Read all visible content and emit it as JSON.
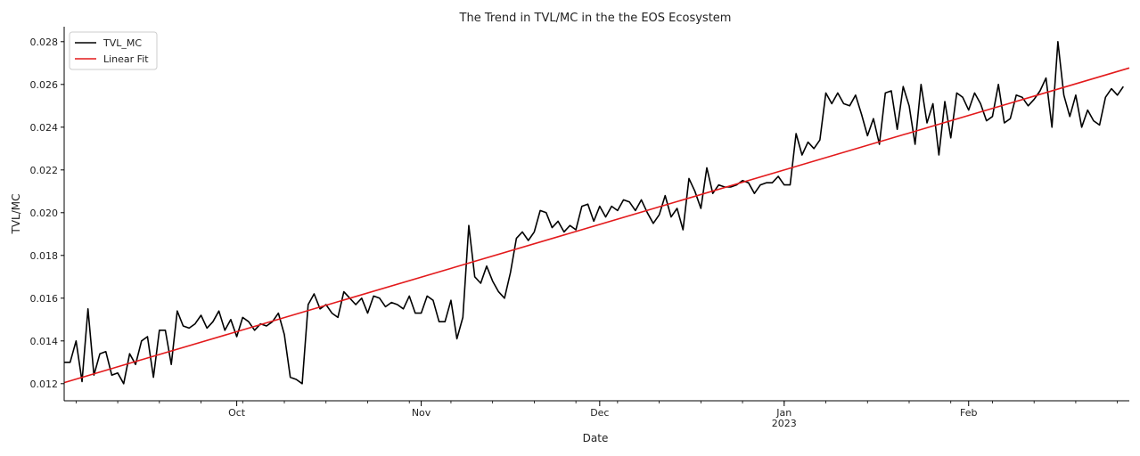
{
  "chart_data": {
    "type": "line",
    "title": "The Trend in TVL/MC in the the EOS Ecosystem",
    "xlabel": "Date",
    "ylabel": "TVL/MC",
    "xlim": [
      "2022-09-02",
      "2023-02-28"
    ],
    "ylim": [
      0.0112,
      0.0287
    ],
    "grid": false,
    "legend_position": "top-left",
    "x_ticks": [
      {
        "date": "2022-10-01",
        "label": "Oct",
        "sublabel": ""
      },
      {
        "date": "2022-11-01",
        "label": "Nov",
        "sublabel": ""
      },
      {
        "date": "2022-12-01",
        "label": "Dec",
        "sublabel": ""
      },
      {
        "date": "2023-01-01",
        "label": "Jan",
        "sublabel": "2023"
      },
      {
        "date": "2023-02-01",
        "label": "Feb",
        "sublabel": ""
      }
    ],
    "y_ticks": [
      {
        "value": 0.012,
        "label": "0.012"
      },
      {
        "value": 0.014,
        "label": "0.014"
      },
      {
        "value": 0.016,
        "label": "0.016"
      },
      {
        "value": 0.018,
        "label": "0.018"
      },
      {
        "value": 0.02,
        "label": "0.020"
      },
      {
        "value": 0.022,
        "label": "0.022"
      },
      {
        "value": 0.024,
        "label": "0.024"
      },
      {
        "value": 0.026,
        "label": "0.026"
      },
      {
        "value": 0.028,
        "label": "0.028"
      }
    ],
    "series": [
      {
        "name": "TVL_MC",
        "color": "#000000",
        "kind": "line",
        "start_date": "2022-09-02",
        "step_days": 1,
        "values": [
          0.013,
          0.013,
          0.014,
          0.0121,
          0.0155,
          0.0124,
          0.0134,
          0.0135,
          0.0124,
          0.0125,
          0.012,
          0.0134,
          0.0129,
          0.014,
          0.0142,
          0.0123,
          0.0145,
          0.0145,
          0.0129,
          0.0154,
          0.0147,
          0.0146,
          0.0148,
          0.0152,
          0.0146,
          0.0149,
          0.0154,
          0.0145,
          0.015,
          0.0142,
          0.0151,
          0.0149,
          0.0145,
          0.0148,
          0.0147,
          0.0149,
          0.0153,
          0.0143,
          0.0123,
          0.0122,
          0.012,
          0.0157,
          0.0162,
          0.0155,
          0.0157,
          0.0153,
          0.0151,
          0.0163,
          0.016,
          0.0157,
          0.016,
          0.0153,
          0.0161,
          0.016,
          0.0156,
          0.0158,
          0.0157,
          0.0155,
          0.0161,
          0.0153,
          0.0153,
          0.0161,
          0.0159,
          0.0149,
          0.0149,
          0.0159,
          0.0141,
          0.0151,
          0.0194,
          0.017,
          0.0167,
          0.0175,
          0.0168,
          0.0163,
          0.016,
          0.0172,
          0.0188,
          0.0191,
          0.0187,
          0.0191,
          0.0201,
          0.02,
          0.0193,
          0.0196,
          0.0191,
          0.0194,
          0.0192,
          0.0203,
          0.0204,
          0.0196,
          0.0203,
          0.0198,
          0.0203,
          0.0201,
          0.0206,
          0.0205,
          0.0201,
          0.0206,
          0.02,
          0.0195,
          0.0199,
          0.0208,
          0.0198,
          0.0202,
          0.0192,
          0.0216,
          0.021,
          0.0202,
          0.0221,
          0.0209,
          0.0213,
          0.0212,
          0.0212,
          0.0213,
          0.0215,
          0.0214,
          0.0209,
          0.0213,
          0.0214,
          0.0214,
          0.0217,
          0.0213,
          0.0213,
          0.0237,
          0.0227,
          0.0233,
          0.023,
          0.0234,
          0.0256,
          0.0251,
          0.0256,
          0.0251,
          0.025,
          0.0255,
          0.0246,
          0.0236,
          0.0244,
          0.0232,
          0.0256,
          0.0257,
          0.0239,
          0.0259,
          0.025,
          0.0232,
          0.026,
          0.0242,
          0.0251,
          0.0227,
          0.0252,
          0.0235,
          0.0256,
          0.0254,
          0.0248,
          0.0256,
          0.0251,
          0.0243,
          0.0245,
          0.026,
          0.0242,
          0.0244,
          0.0255,
          0.0254,
          0.025,
          0.0253,
          0.0257,
          0.0263,
          0.024,
          0.028,
          0.0255,
          0.0245,
          0.0255,
          0.024,
          0.0248,
          0.0243,
          0.0241,
          0.0254,
          0.0258,
          0.0255,
          0.0259
        ]
      },
      {
        "name": "Linear Fit",
        "color": "#e31a1c",
        "kind": "line",
        "x": [
          "2022-09-02",
          "2023-02-28"
        ],
        "y": [
          0.01205,
          0.02677
        ]
      }
    ]
  }
}
